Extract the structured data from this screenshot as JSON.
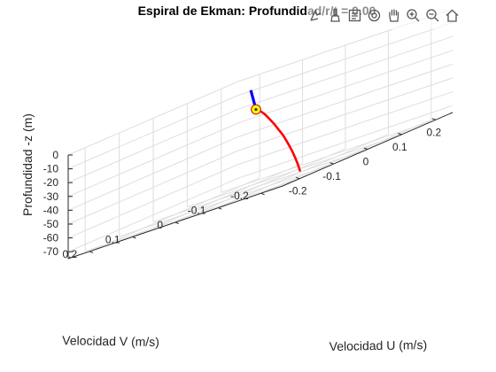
{
  "figure": {
    "title": "Espiral de Ekman: Profundidad/r/t = 0.00",
    "toolbar": [
      {
        "name": "data-cursor-icon",
        "tip": "Data tips"
      },
      {
        "name": "brush-icon",
        "tip": "Brush"
      },
      {
        "name": "export-icon",
        "tip": "Export"
      },
      {
        "name": "rotate-3d-icon",
        "tip": "Rotate 3D"
      },
      {
        "name": "pan-hand-icon",
        "tip": "Pan"
      },
      {
        "name": "zoom-in-icon",
        "tip": "Zoom in"
      },
      {
        "name": "zoom-out-icon",
        "tip": "Zoom out"
      },
      {
        "name": "home-icon",
        "tip": "Restore view"
      }
    ]
  },
  "chart_data": {
    "type": "line",
    "projection": "3d",
    "title": "Espiral de Ekman: Profundidad/r/t = 0.00",
    "xlabel": "Velocidad U (m/s)",
    "ylabel": "Velocidad V (m/s)",
    "zlabel": "Profundidad -z (m)",
    "xlim": [
      -0.25,
      0.25
    ],
    "ylim": [
      -0.25,
      0.25
    ],
    "zlim": [
      -75,
      0
    ],
    "xticks": [
      "-0.2",
      "-0.1",
      "0",
      "0.1",
      "0.2"
    ],
    "yticks": [
      "-0.2",
      "-0.1",
      "0",
      "0.1",
      "0.2"
    ],
    "zticks": [
      "0",
      "-10",
      "-20",
      "-30",
      "-40",
      "-50",
      "-60",
      "-70"
    ],
    "grid": true,
    "colors": {
      "spiral": "#ff0000",
      "surface_vector": "#0000ff",
      "marker_fill": "#ffff00",
      "marker_edge": "#cc2222"
    },
    "series": [
      {
        "type": "line3d",
        "x": [
          0.05,
          0.0495,
          0.0488,
          0.0488,
          0.0496,
          0.051,
          0.0524,
          0.0535,
          0.054,
          0.0537,
          0.0528,
          0.0512,
          0.0493
        ],
        "y": [
          0.05,
          0.0405,
          0.0298,
          0.0178,
          0.0072,
          -0.0017,
          -0.0107,
          -0.0181,
          -0.0253,
          -0.0328,
          -0.0397,
          -0.0468,
          -0.0531
        ],
        "z": [
          -20,
          -22,
          -25,
          -30,
          -35,
          -40,
          -45,
          -50,
          -55,
          -60,
          -65,
          -70,
          -75
        ]
      },
      {
        "type": "vector3d",
        "x": [
          0.05,
          0.06
        ],
        "y": [
          0.05,
          0.07
        ],
        "z": [
          -20,
          -5
        ]
      },
      {
        "type": "marker3d",
        "x": [
          0.05
        ],
        "y": [
          0.05
        ],
        "z": [
          -20
        ]
      }
    ]
  }
}
